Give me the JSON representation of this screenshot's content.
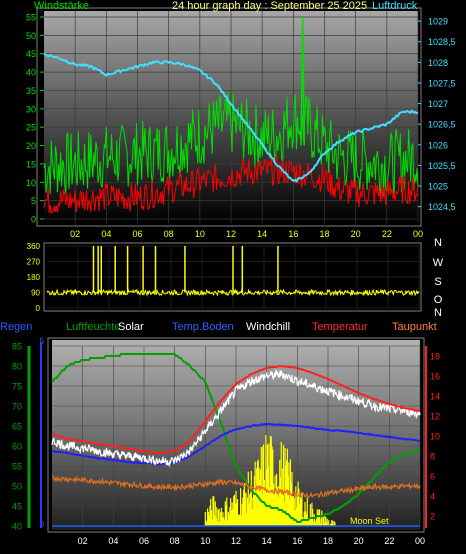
{
  "title": "24 hour graph day : September 25 2025",
  "colors": {
    "wind": "#00e000",
    "gust": "#ff0000",
    "pressure": "#40e0ff",
    "winddir": "#ffff00",
    "humidity": "#00a000",
    "solar": "#ffff00",
    "soiltemp": "#2020ff",
    "windchill": "#ffffff",
    "temp": "#ff2020",
    "dew": "#e07020",
    "rain": "#2060ff"
  },
  "chart_data": [
    {
      "type": "line",
      "left_label": "Windstärke",
      "right_label": "Luftdruck",
      "x_ticks": [
        "02",
        "04",
        "06",
        "08",
        "10",
        "12",
        "14",
        "16",
        "18",
        "20",
        "22",
        "00"
      ],
      "y_left_ticks": [
        "0",
        "5",
        "10",
        "15",
        "20",
        "25",
        "30",
        "35",
        "40",
        "45",
        "50",
        "55"
      ],
      "y_left_range": [
        0,
        55
      ],
      "y_right_ticks": [
        "1024,5",
        "1025",
        "1025,5",
        "1026",
        "1026,5",
        "1027",
        "1027,5",
        "1028",
        "1028,5",
        "1029"
      ],
      "y_right_range": [
        1024.2,
        1029.1
      ],
      "series": [
        {
          "key": "wind",
          "hours": [
            0,
            1,
            2,
            3,
            4,
            5,
            6,
            7,
            8,
            9,
            10,
            11,
            12,
            13,
            14,
            15,
            16,
            17,
            18,
            19,
            20,
            21,
            22,
            23,
            24
          ],
          "values": [
            14,
            15,
            15,
            16,
            17,
            17,
            18,
            18,
            19,
            21,
            23,
            25,
            26,
            24,
            22,
            23,
            28,
            25,
            20,
            17,
            16,
            16,
            15,
            16,
            17
          ]
        },
        {
          "key": "gust",
          "hours": [
            0,
            1,
            2,
            3,
            4,
            5,
            6,
            7,
            8,
            9,
            10,
            11,
            12,
            13,
            14,
            15,
            16,
            17,
            18,
            19,
            20,
            21,
            22,
            23,
            24
          ],
          "values": [
            5,
            5,
            5,
            6,
            6,
            6,
            6,
            7,
            8,
            9,
            10,
            11,
            12,
            13,
            13,
            13,
            13,
            12,
            11,
            8,
            7,
            7,
            7,
            8,
            8
          ]
        },
        {
          "key": "pressure",
          "hours": [
            0,
            1,
            2,
            3,
            4,
            5,
            6,
            7,
            8,
            9,
            10,
            11,
            12,
            13,
            14,
            15,
            16,
            17,
            18,
            19,
            20,
            21,
            22,
            23,
            24
          ],
          "values": [
            1028.2,
            1028.1,
            1027.95,
            1027.9,
            1027.7,
            1027.8,
            1027.9,
            1028.0,
            1028.0,
            1027.95,
            1027.8,
            1027.5,
            1027.0,
            1026.5,
            1026.0,
            1025.5,
            1025.1,
            1025.3,
            1025.8,
            1026.1,
            1026.3,
            1026.4,
            1026.5,
            1026.8,
            1026.8
          ]
        },
        {
          "key": "spike",
          "hours": [
            16.5,
            16.6,
            16.7
          ],
          "values": [
            20,
            55,
            20
          ]
        }
      ]
    },
    {
      "type": "scatter",
      "x_ticks": [
        "02",
        "04",
        "06",
        "08",
        "10",
        "12",
        "14",
        "16",
        "18",
        "20",
        "22",
        "00"
      ],
      "y_ticks": [
        "0",
        "90",
        "180",
        "270",
        "360"
      ],
      "y_range": [
        0,
        360
      ],
      "dir_labels": [
        "N",
        "W",
        "S",
        "O",
        "N"
      ],
      "series": [
        {
          "key": "winddir",
          "base": 90,
          "spike_hours": [
            3.0,
            3.3,
            3.5,
            4.4,
            5.2,
            6.2,
            7.0,
            8.9,
            12.0,
            12.6,
            14.9
          ],
          "spike_values": [
            360,
            360,
            360,
            360,
            360,
            360,
            360,
            360,
            360,
            360,
            360
          ]
        }
      ]
    },
    {
      "type": "line",
      "legend": [
        "Regen",
        "Luftfeuchte",
        "Solar",
        "Temp.Boden",
        "Windchill",
        "Temperatur",
        "Taupunkt"
      ],
      "x_ticks": [
        "02",
        "04",
        "06",
        "08",
        "10",
        "12",
        "14",
        "16",
        "18",
        "20",
        "22",
        "00"
      ],
      "y_left_ticks": [
        "40",
        "45",
        "50",
        "55",
        "60",
        "65",
        "70",
        "75",
        "80",
        "85"
      ],
      "y_left_range": [
        40,
        85
      ],
      "y_right_ticks": [
        "2",
        "4",
        "6",
        "8",
        "10",
        "12",
        "14",
        "16",
        "18"
      ],
      "y_right_range": [
        1,
        19
      ],
      "y_rain_ticks": [
        "0",
        "5"
      ],
      "annotation": "Moon Set",
      "series": [
        {
          "key": "humidity",
          "axis": "left",
          "hours": [
            0,
            1,
            2,
            3,
            4,
            5,
            6,
            7,
            8,
            9,
            10,
            11,
            12,
            13,
            14,
            15,
            16,
            17,
            18,
            19,
            20,
            21,
            22,
            23,
            24
          ],
          "values": [
            76,
            80,
            81.5,
            82,
            82.5,
            83,
            83,
            83,
            83,
            80,
            76,
            66,
            55,
            49,
            45,
            44,
            41,
            42,
            43,
            45,
            48,
            52,
            56,
            58,
            59
          ]
        },
        {
          "key": "soiltemp",
          "axis": "right",
          "hours": [
            0,
            1,
            2,
            3,
            4,
            5,
            6,
            7,
            8,
            9,
            10,
            11,
            12,
            13,
            14,
            15,
            16,
            17,
            18,
            19,
            20,
            21,
            22,
            23,
            24
          ],
          "values": [
            8.5,
            8.3,
            8.0,
            7.8,
            7.6,
            7.4,
            7.3,
            7.2,
            7.3,
            8.0,
            9.0,
            10.0,
            10.7,
            11.0,
            11.2,
            11.1,
            11.0,
            10.8,
            10.6,
            10.5,
            10.3,
            10.1,
            9.9,
            9.7,
            9.5
          ]
        },
        {
          "key": "windchill",
          "axis": "right",
          "hours": [
            0,
            1,
            2,
            3,
            4,
            5,
            6,
            7,
            8,
            9,
            10,
            11,
            12,
            13,
            14,
            15,
            16,
            17,
            18,
            19,
            20,
            21,
            22,
            23,
            24
          ],
          "values": [
            9.5,
            9.0,
            8.8,
            8.5,
            8.2,
            8.0,
            7.8,
            7.5,
            7.5,
            8.5,
            10.5,
            12.5,
            14.5,
            15.5,
            16.0,
            16.2,
            15.5,
            15.0,
            14.5,
            14.0,
            13.5,
            13.0,
            12.7,
            12.5,
            12.2
          ]
        },
        {
          "key": "temp",
          "axis": "right",
          "hours": [
            0,
            1,
            2,
            3,
            4,
            5,
            6,
            7,
            8,
            9,
            10,
            11,
            12,
            13,
            14,
            15,
            16,
            17,
            18,
            19,
            20,
            21,
            22,
            23,
            24
          ],
          "values": [
            10.2,
            9.7,
            9.5,
            9.2,
            9.0,
            8.7,
            8.5,
            8.3,
            8.5,
            9.5,
            11.5,
            13.5,
            15.2,
            16.2,
            16.8,
            17.0,
            16.8,
            16.3,
            15.7,
            15.0,
            14.3,
            13.7,
            13.2,
            12.8,
            12.5
          ]
        },
        {
          "key": "dew",
          "axis": "right",
          "hours": [
            0,
            1,
            2,
            3,
            4,
            5,
            6,
            7,
            8,
            9,
            10,
            11,
            12,
            13,
            14,
            15,
            16,
            17,
            18,
            19,
            20,
            21,
            22,
            23,
            24
          ],
          "values": [
            5.8,
            5.7,
            5.6,
            5.5,
            5.3,
            5.2,
            5.0,
            4.9,
            4.9,
            5.0,
            5.2,
            5.4,
            5.3,
            4.9,
            4.6,
            4.4,
            4.2,
            4.0,
            4.3,
            4.5,
            4.7,
            4.9,
            4.9,
            5.0,
            5.0
          ]
        },
        {
          "key": "solar",
          "axis": "right",
          "hours": [
            10,
            10.5,
            11,
            11.5,
            12,
            12.5,
            13,
            13.5,
            14,
            14.5,
            15,
            15.5,
            16,
            16.5,
            17,
            17.5,
            18,
            18.5
          ],
          "values": [
            2,
            3,
            2.5,
            3,
            3.5,
            4,
            5,
            6,
            8,
            7,
            7,
            6,
            4,
            3,
            2.5,
            2,
            1.5,
            1
          ]
        },
        {
          "key": "rain",
          "axis": "rain",
          "hours": [
            0,
            24
          ],
          "values": [
            0,
            0
          ]
        }
      ]
    }
  ]
}
